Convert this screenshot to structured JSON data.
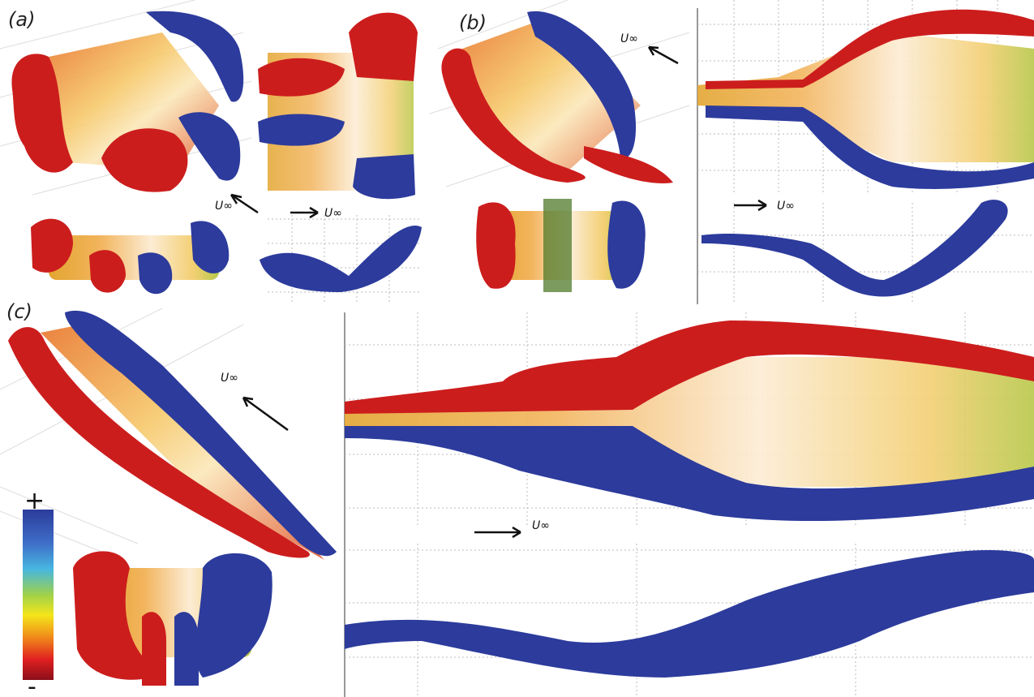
{
  "panels": [
    {
      "label": "(a)"
    },
    {
      "label": "(b)"
    },
    {
      "label": "(c)"
    }
  ],
  "flow_labels": [
    "U∞",
    "U∞",
    "U∞",
    "U∞",
    "U∞",
    "U∞"
  ],
  "colorbar": {
    "max_label": "+",
    "min_label": "-"
  }
}
